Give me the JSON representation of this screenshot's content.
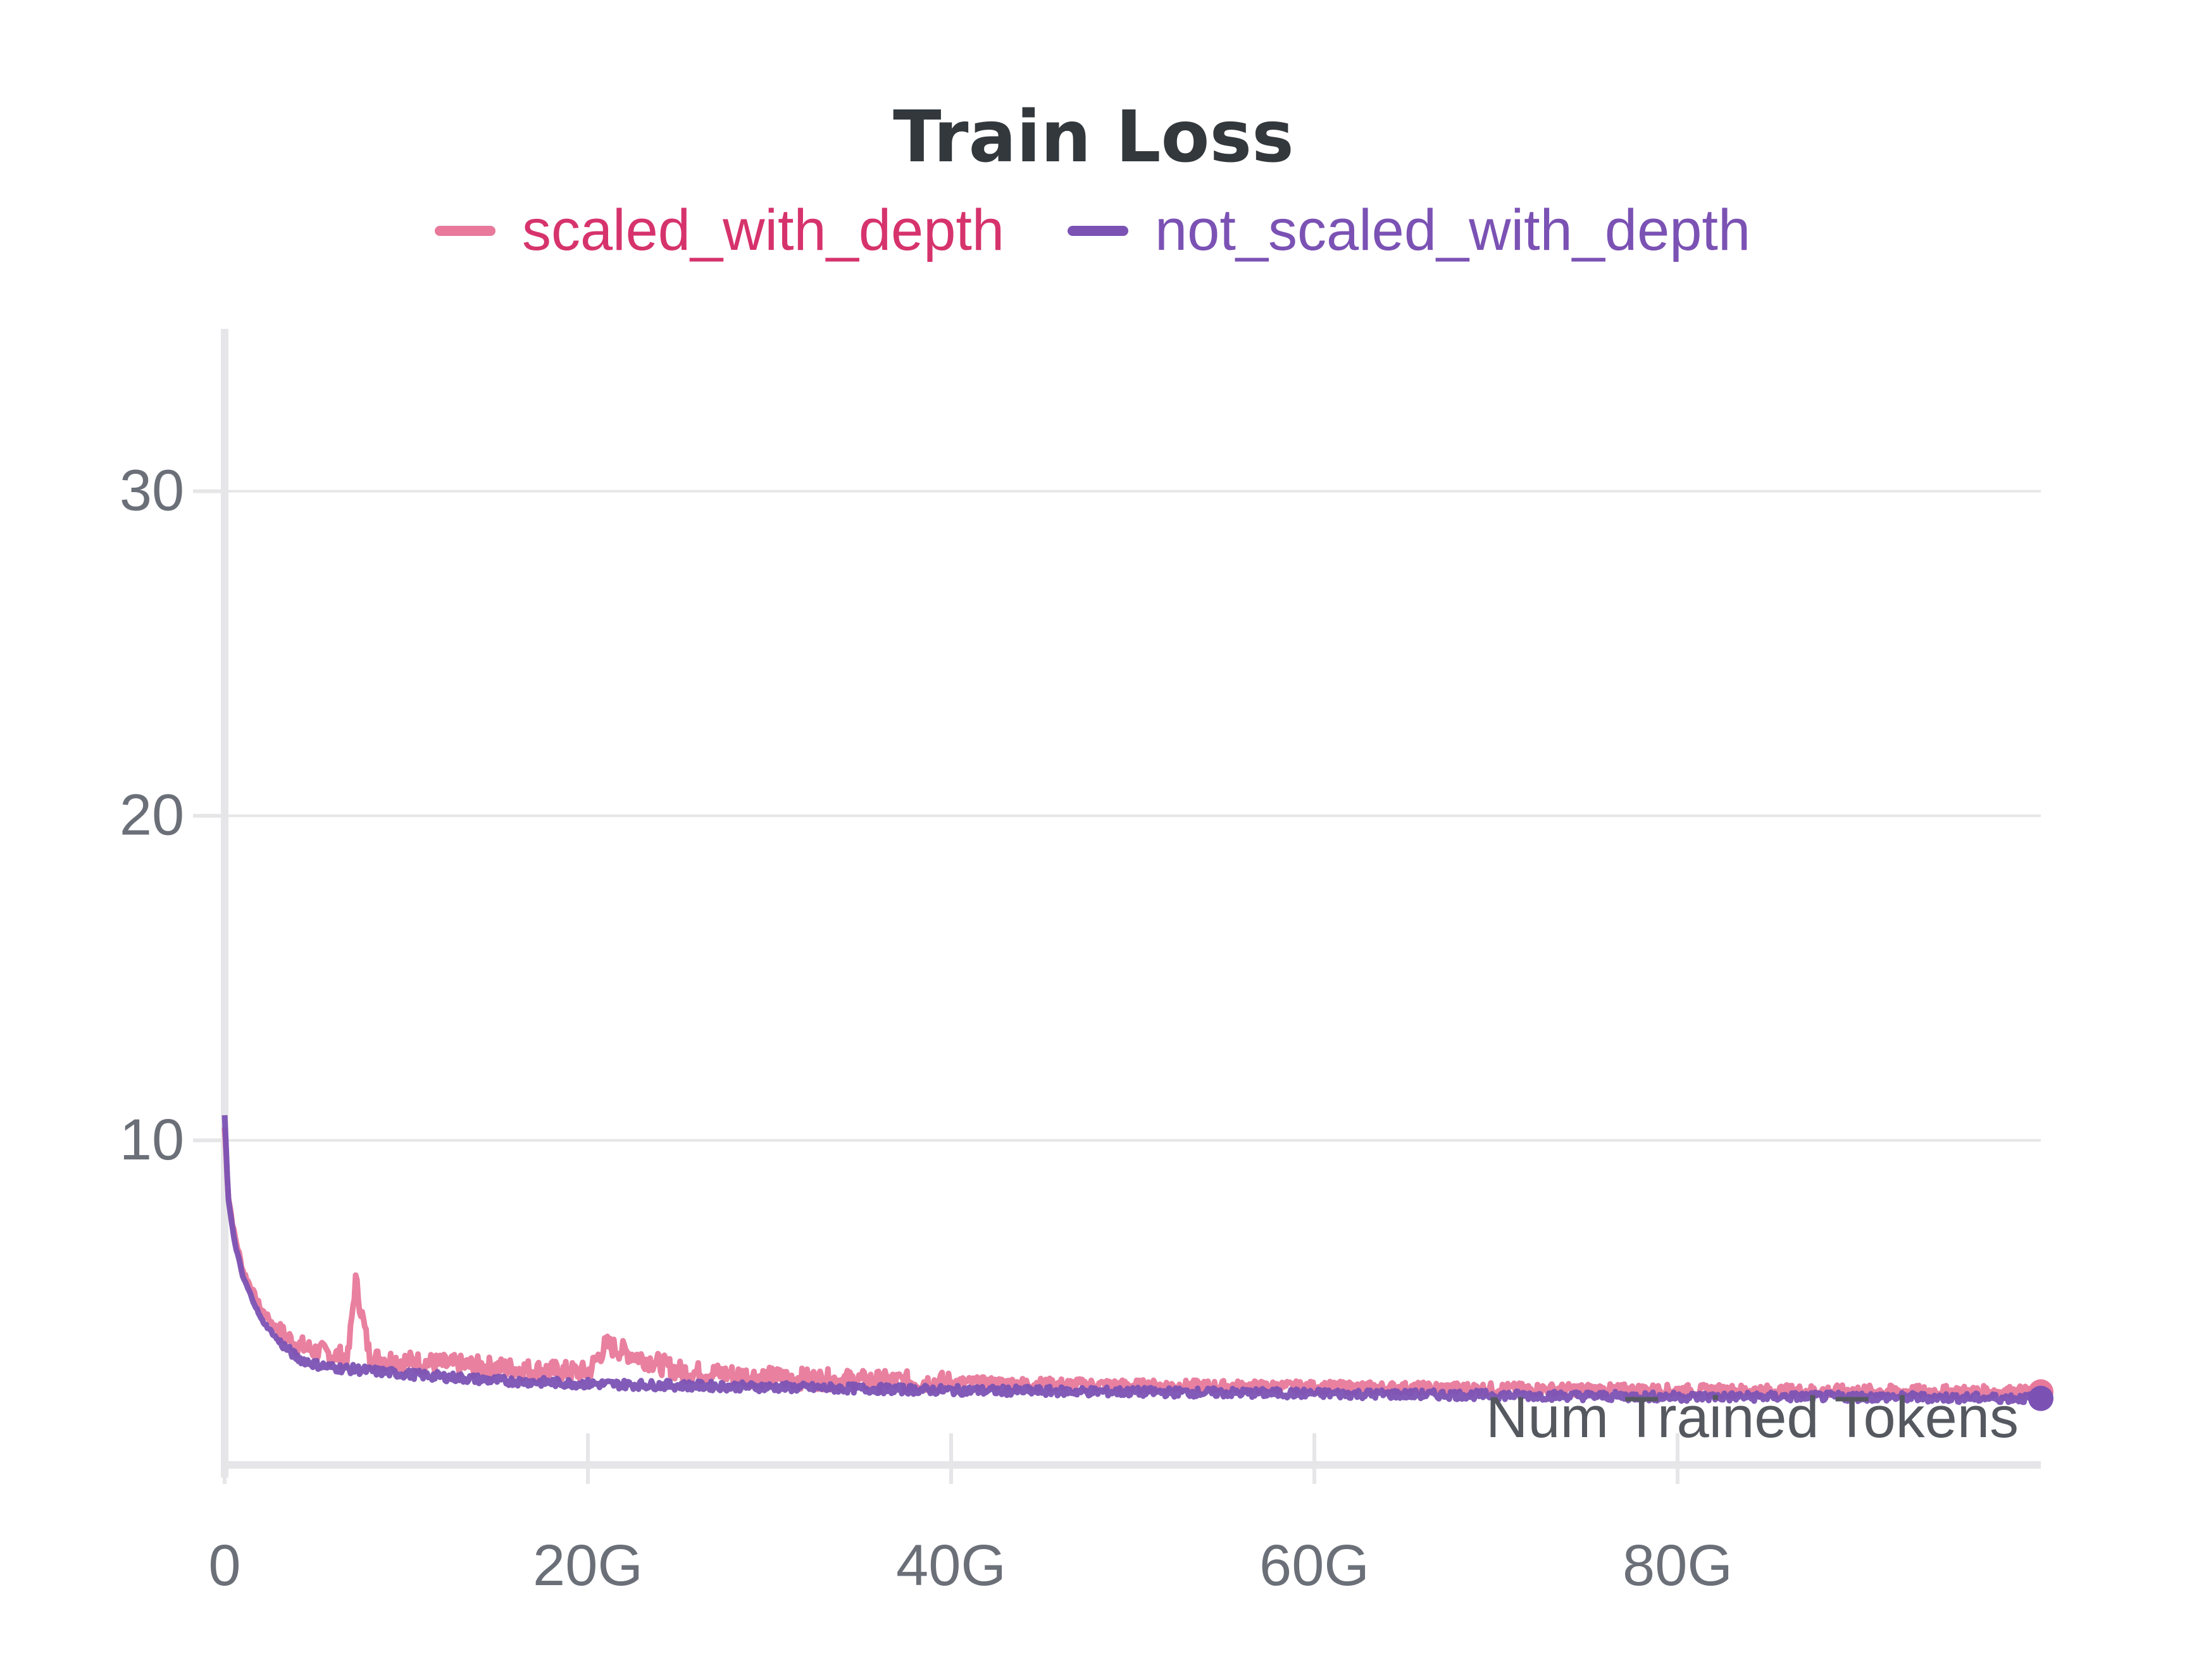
{
  "chart_data": {
    "type": "line",
    "title": "Train Loss",
    "xlabel": "Num Trained Tokens",
    "ylabel": "",
    "xlim": [
      0,
      100000000000
    ],
    "ylim": [
      0,
      35
    ],
    "grid": true,
    "legend_position": "top",
    "x_ticks": [
      {
        "value": 0,
        "label": "0"
      },
      {
        "value": 20000000000,
        "label": "20G"
      },
      {
        "value": 40000000000,
        "label": "40G"
      },
      {
        "value": 60000000000,
        "label": "60G"
      },
      {
        "value": 80000000000,
        "label": "80G"
      }
    ],
    "y_ticks": [
      {
        "value": 10,
        "label": "10"
      },
      {
        "value": 20,
        "label": "20"
      },
      {
        "value": 30,
        "label": "30"
      }
    ],
    "series": [
      {
        "name": "scaled_with_depth",
        "color": "#e8799b",
        "label_color": "#d6336c",
        "x": [
          0,
          200000000,
          500000000,
          1000000000,
          2000000000,
          3000000000,
          4000000000,
          5000000000,
          6000000000,
          6800000000,
          7200000000,
          8000000000,
          10000000000,
          12000000000,
          15000000000,
          18000000000,
          20000000000,
          21000000000,
          25000000000,
          30000000000,
          35000000000,
          40000000000,
          50000000000,
          60000000000,
          70000000000,
          80000000000,
          90000000000,
          100000000000
        ],
        "y": [
          10.4,
          8.3,
          7.2,
          6.0,
          4.8,
          4.1,
          3.7,
          3.5,
          3.4,
          3.3,
          5.7,
          3.3,
          3.2,
          3.1,
          3.0,
          2.9,
          2.85,
          3.7,
          2.9,
          2.7,
          2.6,
          2.55,
          2.45,
          2.4,
          2.35,
          2.3,
          2.28,
          2.25
        ]
      },
      {
        "name": "not_scaled_with_depth",
        "color": "#7b52b4",
        "label_color": "#7b52b4",
        "x": [
          0,
          200000000,
          500000000,
          1000000000,
          2000000000,
          3000000000,
          4000000000,
          5000000000,
          6000000000,
          8000000000,
          10000000000,
          15000000000,
          20000000000,
          25000000000,
          30000000000,
          35000000000,
          40000000000,
          50000000000,
          60000000000,
          70000000000,
          80000000000,
          90000000000,
          100000000000
        ],
        "y": [
          10.8,
          8.2,
          7.0,
          5.8,
          4.5,
          3.8,
          3.3,
          3.1,
          3.0,
          2.9,
          2.8,
          2.6,
          2.5,
          2.45,
          2.4,
          2.35,
          2.3,
          2.25,
          2.2,
          2.15,
          2.1,
          2.1,
          2.05
        ]
      }
    ]
  }
}
